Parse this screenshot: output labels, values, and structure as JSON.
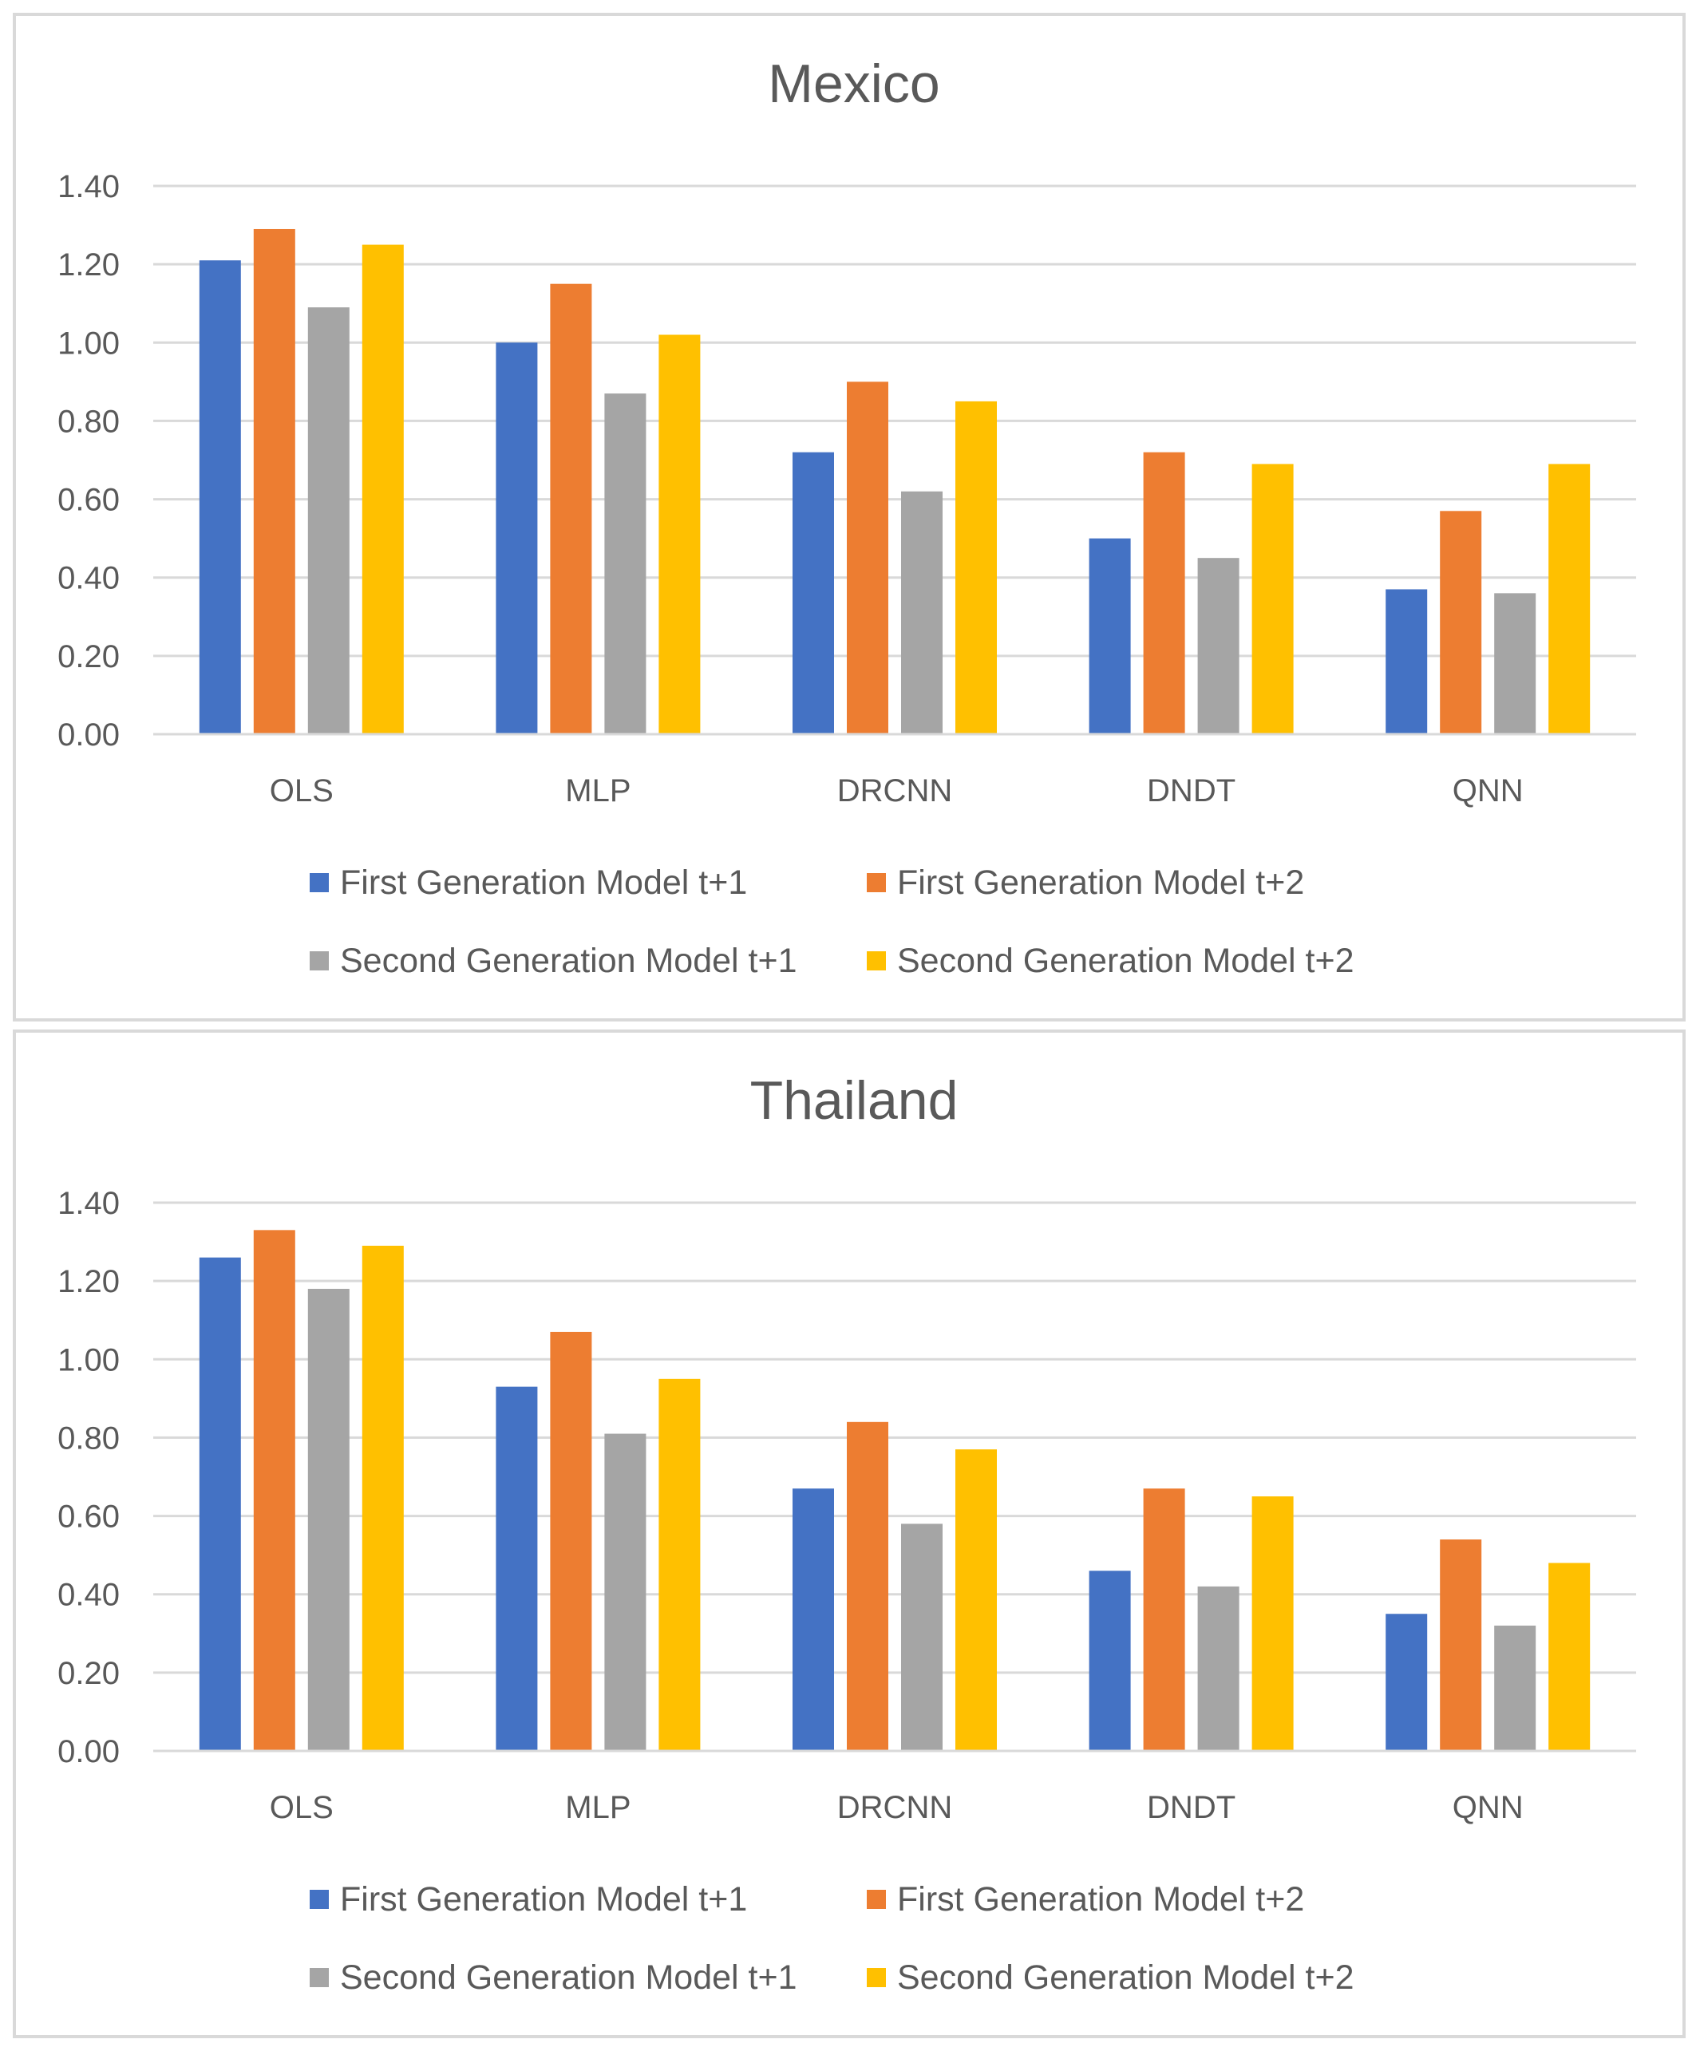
{
  "chart_data": [
    {
      "type": "bar",
      "title": "Mexico",
      "xlabel": "",
      "ylabel": "",
      "ylim": [
        0,
        1.4
      ],
      "yticks": [
        "0.00",
        "0.20",
        "0.40",
        "0.60",
        "0.80",
        "1.00",
        "1.20",
        "1.40"
      ],
      "grid": true,
      "legend_position": "bottom",
      "categories": [
        "OLS",
        "MLP",
        "DRCNN",
        "DNDT",
        "QNN"
      ],
      "series": [
        {
          "name": "First Generation Model t+1",
          "color": "#4472c4",
          "values": [
            1.21,
            1.0,
            0.72,
            0.5,
            0.37
          ]
        },
        {
          "name": "First Generation Model t+2",
          "color": "#ed7d31",
          "values": [
            1.29,
            1.15,
            0.9,
            0.72,
            0.57
          ]
        },
        {
          "name": "Second Generation Model t+1",
          "color": "#a5a5a5",
          "values": [
            1.09,
            0.87,
            0.62,
            0.45,
            0.36
          ]
        },
        {
          "name": "Second Generation Model t+2",
          "color": "#ffc000",
          "values": [
            1.25,
            1.02,
            0.85,
            0.69,
            0.69
          ]
        }
      ]
    },
    {
      "type": "bar",
      "title": "Thailand",
      "xlabel": "",
      "ylabel": "",
      "ylim": [
        0,
        1.4
      ],
      "yticks": [
        "0.00",
        "0.20",
        "0.40",
        "0.60",
        "0.80",
        "1.00",
        "1.20",
        "1.40"
      ],
      "grid": true,
      "legend_position": "bottom",
      "categories": [
        "OLS",
        "MLP",
        "DRCNN",
        "DNDT",
        "QNN"
      ],
      "series": [
        {
          "name": "First Generation Model t+1",
          "color": "#4472c4",
          "values": [
            1.26,
            0.93,
            0.67,
            0.46,
            0.35
          ]
        },
        {
          "name": "First Generation Model t+2",
          "color": "#ed7d31",
          "values": [
            1.33,
            1.07,
            0.84,
            0.67,
            0.54
          ]
        },
        {
          "name": "Second Generation Model t+1",
          "color": "#a5a5a5",
          "values": [
            1.18,
            0.81,
            0.58,
            0.42,
            0.32
          ]
        },
        {
          "name": "Second Generation Model t+2",
          "color": "#ffc000",
          "values": [
            1.29,
            0.95,
            0.77,
            0.65,
            0.48
          ]
        }
      ]
    }
  ],
  "colors": {
    "gridline": "#d9d9d9",
    "text": "#595959",
    "panel_border": "#d9d9d9"
  }
}
